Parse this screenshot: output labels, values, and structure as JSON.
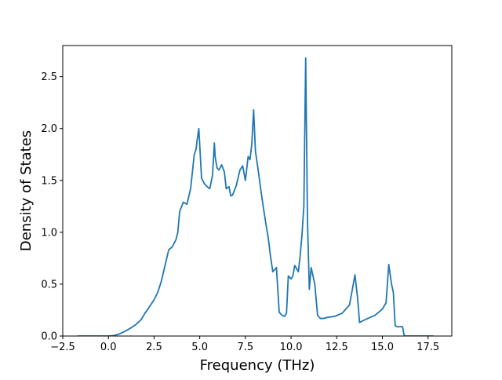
{
  "chart_data": {
    "type": "line",
    "title": "",
    "xlabel": "Frequency (THz)",
    "ylabel": "Density of States",
    "xlim": [
      -2.5,
      18.8
    ],
    "ylim": [
      0.0,
      2.8
    ],
    "xticks": [
      -2.5,
      0.0,
      2.5,
      5.0,
      7.5,
      10.0,
      12.5,
      15.0,
      17.5
    ],
    "xtick_labels": [
      "−2.5",
      "0.0",
      "2.5",
      "5.0",
      "7.5",
      "10.0",
      "12.5",
      "15.0",
      "17.5"
    ],
    "yticks": [
      0.0,
      0.5,
      1.0,
      1.5,
      2.0,
      2.5
    ],
    "ytick_labels": [
      "0.0",
      "0.5",
      "1.0",
      "1.5",
      "2.0",
      "2.5"
    ],
    "grid": false,
    "legend": "none",
    "series": [
      {
        "color": "#1f77b4",
        "x": [
          -1.7,
          -1.0,
          0.0,
          0.3,
          0.6,
          0.9,
          1.2,
          1.5,
          1.8,
          2.0,
          2.2,
          2.5,
          2.7,
          2.9,
          3.1,
          3.3,
          3.5,
          3.7,
          3.8,
          3.9,
          4.1,
          4.3,
          4.5,
          4.7,
          4.8,
          4.85,
          4.95,
          5.1,
          5.25,
          5.4,
          5.55,
          5.7,
          5.8,
          5.85,
          5.95,
          6.05,
          6.2,
          6.35,
          6.45,
          6.6,
          6.7,
          6.8,
          7.0,
          7.2,
          7.35,
          7.5,
          7.65,
          7.75,
          7.85,
          7.95,
          8.05,
          8.2,
          8.35,
          8.5,
          8.65,
          8.75,
          8.85,
          9.0,
          9.2,
          9.35,
          9.5,
          9.65,
          9.75,
          9.85,
          10.0,
          10.1,
          10.2,
          10.4,
          10.5,
          10.6,
          10.7,
          10.8,
          10.9,
          11.0,
          11.1,
          11.2,
          11.3,
          11.45,
          11.6,
          11.8,
          12.0,
          12.4,
          12.8,
          13.2,
          13.5,
          13.65,
          13.75,
          13.85,
          14.2,
          14.6,
          15.0,
          15.2,
          15.35,
          15.5,
          15.6,
          15.7,
          15.8,
          16.1,
          16.2,
          16.3,
          17.0,
          17.8
        ],
        "y": [
          0.0,
          0.0,
          0.0,
          0.005,
          0.02,
          0.045,
          0.075,
          0.11,
          0.16,
          0.22,
          0.27,
          0.35,
          0.42,
          0.53,
          0.68,
          0.83,
          0.86,
          0.93,
          1.0,
          1.2,
          1.29,
          1.27,
          1.42,
          1.75,
          1.8,
          1.88,
          2.0,
          1.52,
          1.47,
          1.44,
          1.42,
          1.55,
          1.86,
          1.72,
          1.62,
          1.6,
          1.65,
          1.58,
          1.42,
          1.44,
          1.35,
          1.36,
          1.45,
          1.6,
          1.64,
          1.5,
          1.73,
          1.7,
          1.85,
          2.18,
          1.78,
          1.6,
          1.4,
          1.22,
          1.05,
          0.95,
          0.8,
          0.62,
          0.66,
          0.23,
          0.2,
          0.19,
          0.22,
          0.58,
          0.55,
          0.58,
          0.68,
          0.62,
          0.78,
          0.98,
          1.25,
          2.68,
          1.1,
          0.45,
          0.66,
          0.58,
          0.5,
          0.2,
          0.17,
          0.17,
          0.18,
          0.19,
          0.22,
          0.3,
          0.59,
          0.35,
          0.13,
          0.14,
          0.17,
          0.2,
          0.26,
          0.32,
          0.69,
          0.5,
          0.42,
          0.1,
          0.09,
          0.09,
          0.0,
          0.0,
          0.0,
          0.0
        ]
      }
    ]
  }
}
